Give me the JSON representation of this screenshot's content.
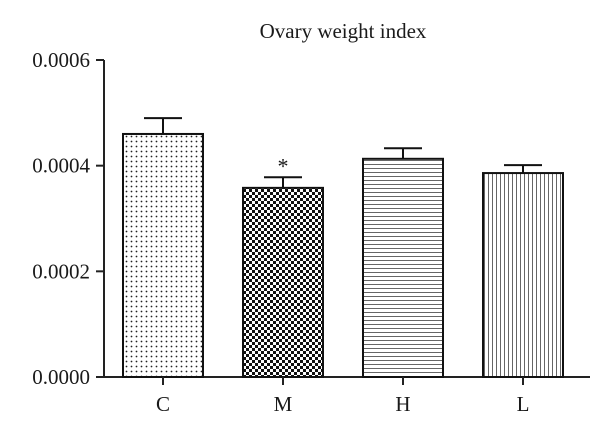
{
  "chart_data": {
    "type": "bar",
    "title": "Ovary weight index",
    "xlabel": "",
    "ylabel": "",
    "categories": [
      "C",
      "M",
      "H",
      "L"
    ],
    "values": [
      0.00046,
      0.000358,
      0.000413,
      0.000386
    ],
    "error_bars": [
      3e-05,
      2e-05,
      2e-05,
      1.5e-05
    ],
    "ylim": [
      0,
      0.0006
    ],
    "yticks": [
      0.0,
      0.0002,
      0.0004,
      0.0006
    ],
    "ytick_labels": [
      "0.0000",
      "0.0002",
      "0.0004",
      "0.0006"
    ],
    "patterns": [
      "dots",
      "checker",
      "horizontal-lines",
      "vertical-lines"
    ],
    "annotations": [
      {
        "category": "M",
        "text": "*"
      }
    ],
    "grid": false,
    "legend": "none"
  }
}
